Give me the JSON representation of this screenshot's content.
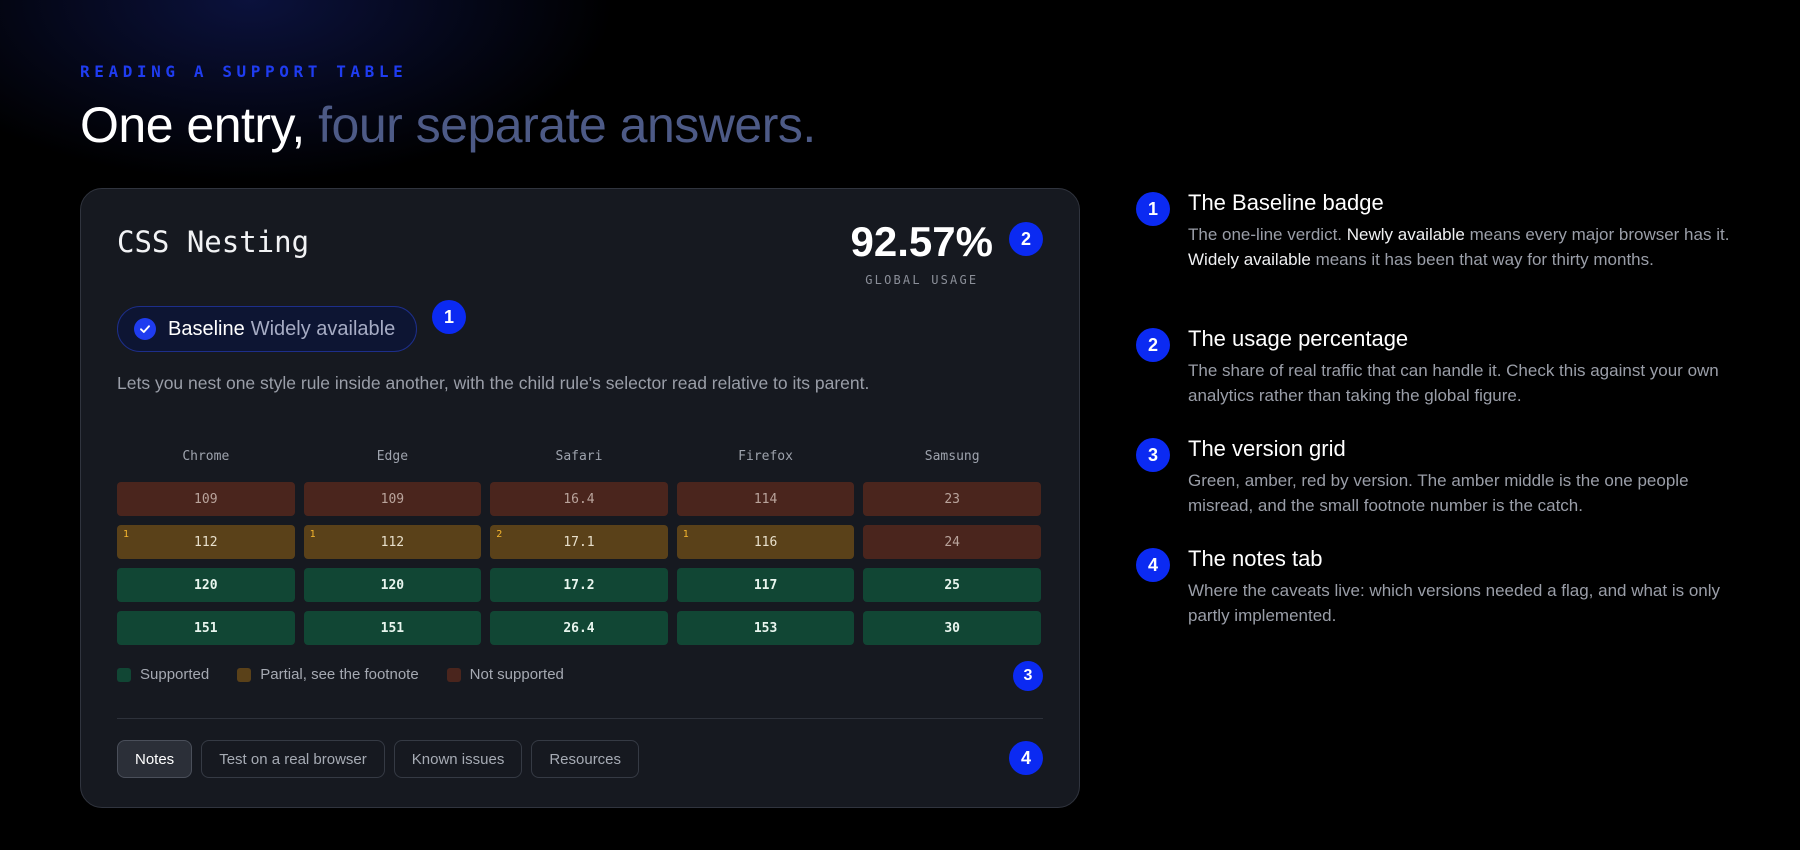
{
  "eyebrow": "READING A SUPPORT TABLE",
  "headline": {
    "lead": "One entry, ",
    "accent": "four separate answers."
  },
  "card": {
    "title": "CSS Nesting",
    "usage": {
      "value": "92.57%",
      "label": "GLOBAL USAGE"
    },
    "markers": [
      "1",
      "2",
      "3",
      "4"
    ],
    "badge": {
      "strong": "Baseline",
      "muted": "Widely available"
    },
    "description": "Lets you nest one style rule inside another, with the child rule's selector read relative to its parent.",
    "browsers": [
      "Chrome",
      "Edge",
      "Safari",
      "Firefox",
      "Samsung"
    ],
    "rows": [
      [
        {
          "v": "109",
          "s": "none"
        },
        {
          "v": "109",
          "s": "none"
        },
        {
          "v": "16.4",
          "s": "none"
        },
        {
          "v": "114",
          "s": "none"
        },
        {
          "v": "23",
          "s": "none"
        }
      ],
      [
        {
          "v": "112",
          "s": "partial",
          "fn": "1"
        },
        {
          "v": "112",
          "s": "partial",
          "fn": "1"
        },
        {
          "v": "17.1",
          "s": "partial",
          "fn": "2"
        },
        {
          "v": "116",
          "s": "partial",
          "fn": "1"
        },
        {
          "v": "24",
          "s": "none"
        }
      ],
      [
        {
          "v": "120",
          "s": "supported"
        },
        {
          "v": "120",
          "s": "supported"
        },
        {
          "v": "17.2",
          "s": "supported"
        },
        {
          "v": "117",
          "s": "supported"
        },
        {
          "v": "25",
          "s": "supported"
        }
      ],
      [
        {
          "v": "151",
          "s": "supported"
        },
        {
          "v": "151",
          "s": "supported"
        },
        {
          "v": "26.4",
          "s": "supported"
        },
        {
          "v": "153",
          "s": "supported"
        },
        {
          "v": "30",
          "s": "supported"
        }
      ]
    ],
    "legend": {
      "supported": "Supported",
      "partial": "Partial, see the footnote",
      "none": "Not supported"
    },
    "tabs": [
      "Notes",
      "Test on a real browser",
      "Known issues",
      "Resources"
    ],
    "active_tab": "Notes"
  },
  "explainers": [
    {
      "n": "1",
      "title": "The Baseline badge",
      "body": [
        {
          "t": "The one-line verdict. "
        },
        {
          "t": "Newly available",
          "hl": true
        },
        {
          "t": " means every major browser has it. "
        },
        {
          "t": "Widely available",
          "hl": true
        },
        {
          "t": " means it has been that way for thirty months."
        }
      ]
    },
    {
      "n": "2",
      "title": "The usage percentage",
      "body": [
        {
          "t": "The share of real traffic that can handle it. Check this against your own analytics rather than taking the global figure."
        }
      ]
    },
    {
      "n": "3",
      "title": "The version grid",
      "body": [
        {
          "t": "Green, amber, red by version. The amber middle is the one people misread, and the small footnote number is the catch."
        }
      ]
    },
    {
      "n": "4",
      "title": "The notes tab",
      "body": [
        {
          "t": "Where the caveats live: which versions needed a flag, and what is only partly implemented."
        }
      ]
    }
  ],
  "colors": {
    "accent": "#0b2af2",
    "supported": "#114634",
    "partial": "#5a4119",
    "not_supported": "#4a251d",
    "footnote": "#f4b52e"
  }
}
